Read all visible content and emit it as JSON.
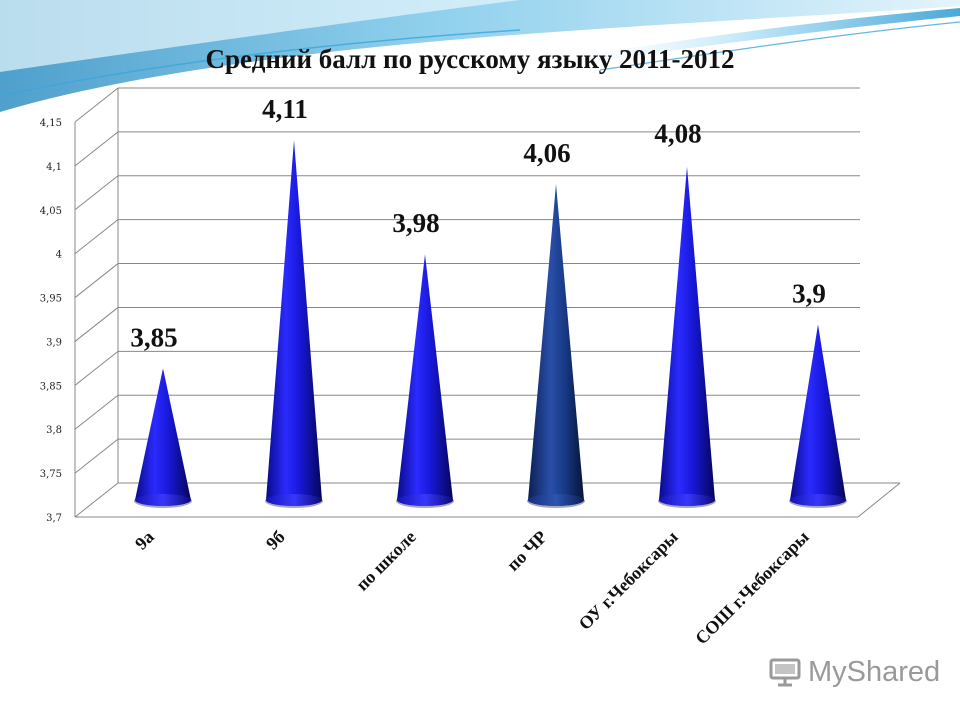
{
  "slide": {
    "watermark": {
      "text": "MyShared",
      "icon": "presentation-screen-icon"
    },
    "colors": {
      "cone_primary": "#1a1ae6",
      "cone_highlight": "#1a3a8c",
      "grid": "#888888",
      "swoosh": "#3aa6d8"
    }
  },
  "chart_data": {
    "type": "bar",
    "bar_shape": "cone-3d",
    "title": "Средний балл по русскому языку 2011-2012",
    "xlabel": "",
    "ylabel": "",
    "categories": [
      "9а",
      "9б",
      "по школе",
      "по ЧР",
      "ОУ г.Чебоксары",
      "СОШ г.Чебоксары"
    ],
    "values": [
      3.85,
      4.11,
      3.98,
      4.06,
      4.08,
      3.9
    ],
    "value_labels": [
      "3,85",
      "4,11",
      "3,98",
      "4,06",
      "4,08",
      "3,9"
    ],
    "ylim": [
      3.7,
      4.15
    ],
    "yticks": [
      3.7,
      3.75,
      3.8,
      3.85,
      3.9,
      3.95,
      4,
      4.05,
      4.1,
      4.15
    ],
    "ytick_labels": [
      "3,7",
      "3,75",
      "3,8",
      "3,85",
      "3,9",
      "3,95",
      "4",
      "4,05",
      "4,1",
      "4,15"
    ],
    "grid": true,
    "legend": "none",
    "highlighted_category": "по ЧР"
  }
}
